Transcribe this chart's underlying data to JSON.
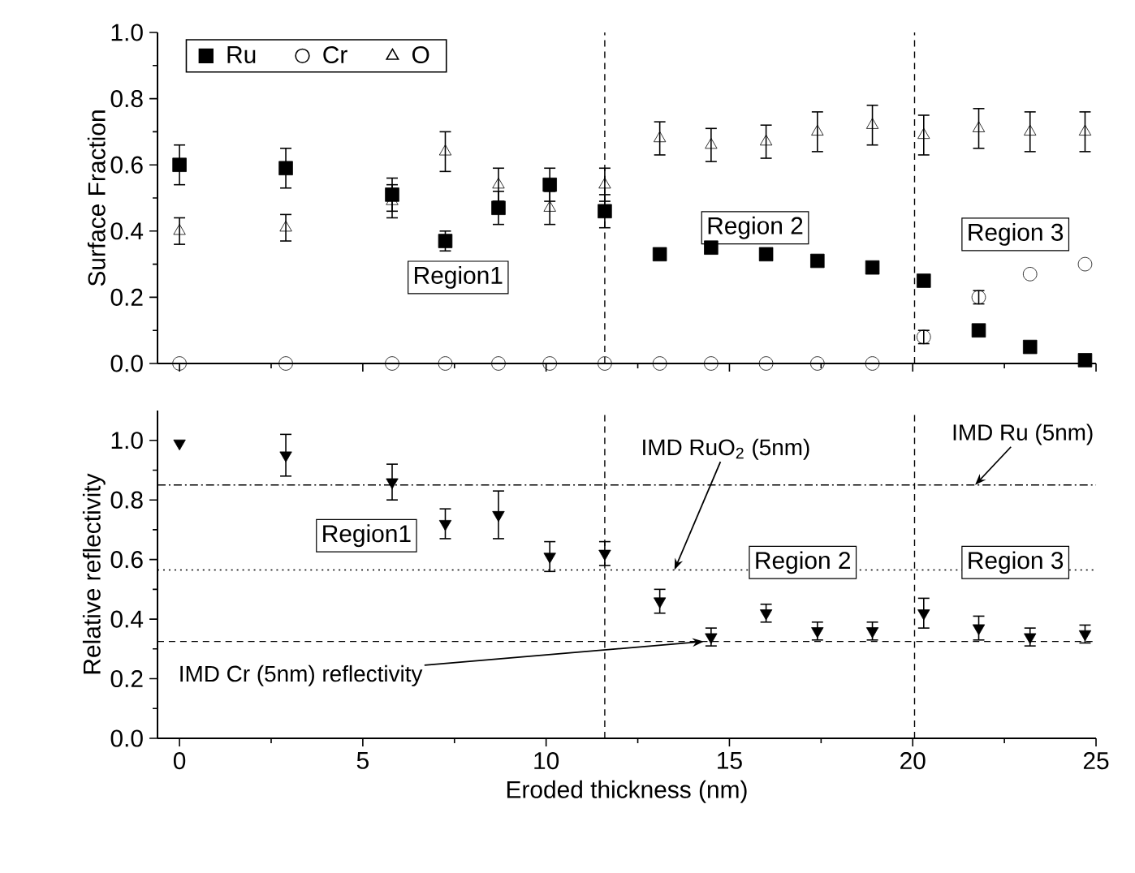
{
  "chart_data": [
    {
      "type": "scatter",
      "ylabel": "Surface Fraction",
      "x": [
        0,
        2.9,
        5.8,
        7.25,
        8.7,
        10.1,
        11.6,
        13.1,
        14.5,
        16.0,
        17.4,
        18.9,
        20.3,
        21.8,
        23.2,
        24.7
      ],
      "xlim": [
        -0.6,
        25
      ],
      "xticks": [
        0,
        5,
        10,
        15,
        20,
        25
      ],
      "ylim": [
        0,
        1.0
      ],
      "yticks": [
        {
          "value": 0,
          "label": "0.0"
        },
        {
          "value": 0.2,
          "label": "0.2"
        },
        {
          "value": 0.4,
          "label": "0.4"
        },
        {
          "value": 0.6,
          "label": "0.6"
        },
        {
          "value": 0.8,
          "label": "0.8"
        },
        {
          "value": 1.0,
          "label": "1.0"
        }
      ],
      "tick_labels": "y",
      "legend": "top left",
      "series": [
        {
          "name": "Ru",
          "color": "#000000",
          "marker": "square",
          "values": [
            0.6,
            0.59,
            0.51,
            0.37,
            0.47,
            0.54,
            0.46,
            0.33,
            0.35,
            0.33,
            0.31,
            0.29,
            0.25,
            0.1,
            0.05,
            0.01
          ],
          "errors": [
            0.06,
            0.06,
            0.05,
            0.03,
            0.05,
            0.05,
            0.05,
            null,
            null,
            null,
            null,
            null,
            null,
            null,
            null,
            null
          ]
        },
        {
          "name": "Cr",
          "color": "#000000",
          "marker": "circle",
          "values": [
            0,
            0,
            0,
            0,
            0,
            0,
            0,
            0,
            0,
            0,
            0,
            0,
            0.08,
            0.2,
            0.27,
            0.3
          ],
          "errors": [
            null,
            null,
            null,
            null,
            null,
            null,
            null,
            null,
            null,
            null,
            null,
            null,
            0.02,
            0.02,
            null,
            null
          ]
        },
        {
          "name": "O",
          "color": "#000000",
          "marker": "triangle",
          "values": [
            0.4,
            0.41,
            0.49,
            0.64,
            0.54,
            0.47,
            0.54,
            0.68,
            0.66,
            0.67,
            0.7,
            0.72,
            0.69,
            0.71,
            0.7,
            0.7
          ],
          "errors": [
            0.04,
            0.04,
            0.05,
            0.06,
            0.05,
            0.05,
            0.05,
            0.05,
            0.05,
            0.05,
            0.06,
            0.06,
            0.06,
            0.06,
            0.06,
            0.06
          ]
        }
      ],
      "ref_lines": [
        {
          "axis": "x",
          "value": 11.6,
          "line_style": "dashed"
        },
        {
          "axis": "x",
          "value": 20.05,
          "line_style": "dashed"
        }
      ],
      "annotations": [
        "Region1",
        "Region 2",
        "Region 3"
      ]
    },
    {
      "type": "scatter",
      "xlabel": "Eroded thickness (nm)",
      "ylabel": "Relative reflectivity",
      "x": [
        0,
        2.9,
        5.8,
        7.25,
        8.7,
        10.1,
        11.6,
        13.1,
        14.5,
        16.0,
        17.4,
        18.9,
        20.3,
        21.8,
        23.2,
        24.7
      ],
      "xlim": [
        -0.6,
        25
      ],
      "xticks": [
        0,
        5,
        10,
        15,
        20,
        25
      ],
      "ylim": [
        0,
        1.1
      ],
      "yticks": [
        {
          "value": 0,
          "label": "0.0"
        },
        {
          "value": 0.2,
          "label": "0.2"
        },
        {
          "value": 0.4,
          "label": "0.4"
        },
        {
          "value": 0.6,
          "label": "0.6"
        },
        {
          "value": 0.8,
          "label": "0.8"
        },
        {
          "value": 1.0,
          "label": "1.0"
        }
      ],
      "series": [
        {
          "color": "#000000",
          "marker": "triangle down",
          "values": [
            0.99,
            0.95,
            0.86,
            0.72,
            0.75,
            0.61,
            0.62,
            0.46,
            0.34,
            0.42,
            0.36,
            0.36,
            0.42,
            0.37,
            0.34,
            0.35
          ],
          "errors": [
            null,
            0.07,
            0.06,
            0.05,
            0.08,
            0.05,
            0.04,
            0.04,
            0.03,
            0.03,
            0.03,
            0.03,
            0.05,
            0.04,
            0.03,
            0.03
          ]
        }
      ],
      "ref_lines": [
        {
          "axis": "x",
          "value": 11.6,
          "line_style": "dashed"
        },
        {
          "axis": "x",
          "value": 20.05,
          "line_style": "dashed"
        },
        {
          "axis": "y",
          "value": 0.85,
          "line_style": "dashdot"
        },
        {
          "axis": "y",
          "value": 0.565,
          "line_style": "dotted"
        },
        {
          "axis": "y",
          "value": 0.325,
          "line_style": "dashed"
        }
      ],
      "annotations": [
        "Region1",
        "Region 2",
        "Region 3",
        {
          "text": "IMD RuO$_{2}$ (5nm)",
          "x": 13.5,
          "y": 0.565
        },
        {
          "text": "IMD Ru (5nm)",
          "x": 21.7,
          "y": 0.85
        },
        {
          "text": "IMD Cr (5nm) reflectivity",
          "x": 14.3,
          "y": 0.325
        }
      ]
    }
  ]
}
